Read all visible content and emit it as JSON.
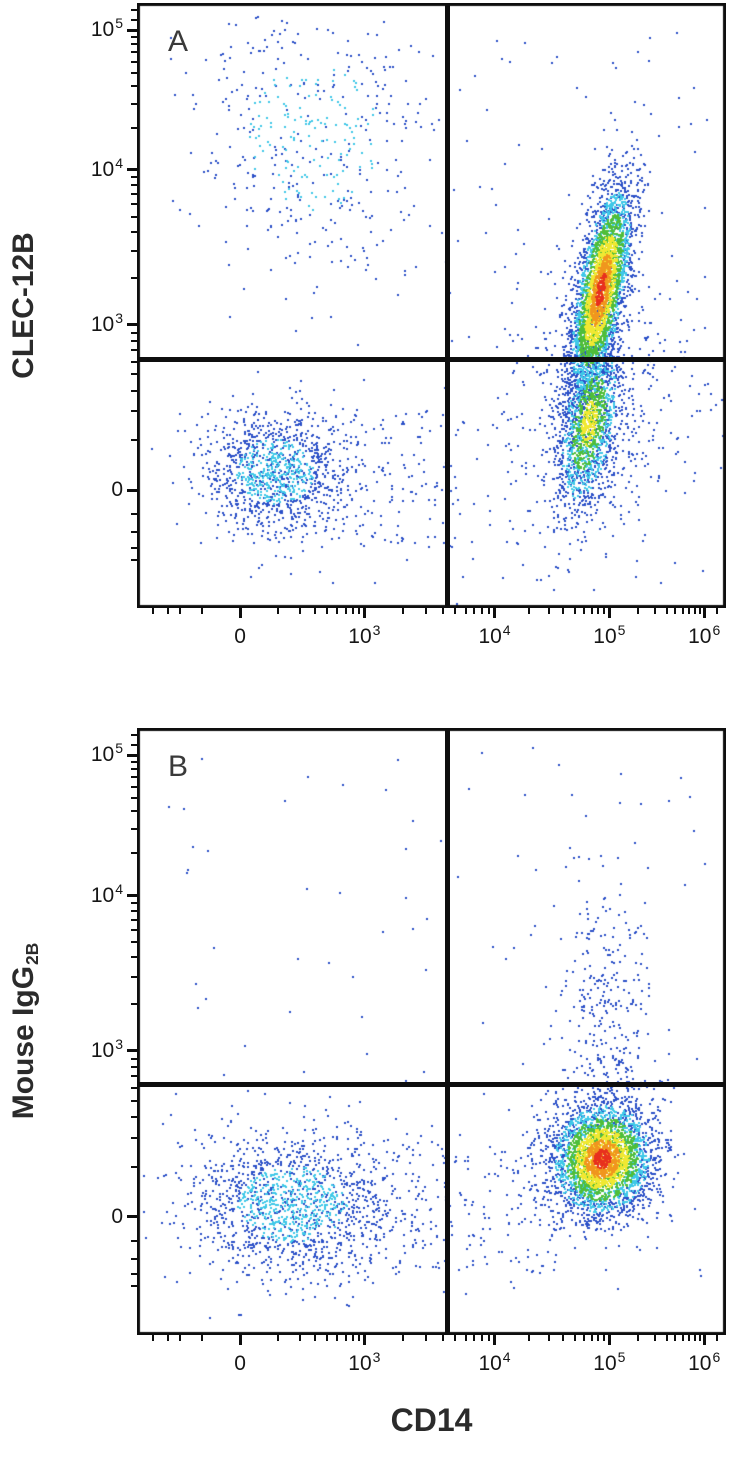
{
  "figure": {
    "x_axis_label": "CD14",
    "panels": [
      {
        "letter": "A",
        "y_label_main": "CLEC-12B",
        "y_label_sub": ""
      },
      {
        "letter": "B",
        "y_label_main": "Mouse IgG",
        "y_label_sub": "2B"
      }
    ]
  },
  "axes": {
    "x": {
      "majors": [
        {
          "frac": 0.175,
          "base": "0",
          "exp": ""
        },
        {
          "frac": 0.386,
          "base": "10",
          "exp": "3"
        },
        {
          "frac": 0.607,
          "base": "10",
          "exp": "4"
        },
        {
          "frac": 0.802,
          "base": "10",
          "exp": "5"
        },
        {
          "frac": 0.963,
          "base": "10",
          "exp": "6"
        }
      ],
      "minors": [
        0.028,
        0.052,
        0.073,
        0.11,
        0.239,
        0.276,
        0.303,
        0.323,
        0.34,
        0.354,
        0.366,
        0.377,
        0.452,
        0.491,
        0.519,
        0.54,
        0.558,
        0.573,
        0.586,
        0.597,
        0.666,
        0.7,
        0.724,
        0.743,
        0.759,
        0.772,
        0.783,
        0.793,
        0.85,
        0.879,
        0.899,
        0.914,
        0.927,
        0.938,
        0.947,
        0.956,
        0.985
      ]
    },
    "y": {
      "majors": [
        {
          "frac": 0.955,
          "base": "10",
          "exp": "5"
        },
        {
          "frac": 0.724,
          "base": "10",
          "exp": "4"
        },
        {
          "frac": 0.468,
          "base": "10",
          "exp": "3"
        },
        {
          "frac": 0.195,
          "base": "0",
          "exp": ""
        }
      ],
      "minors": [
        0.08,
        0.1,
        0.125,
        0.155,
        0.277,
        0.325,
        0.359,
        0.386,
        0.407,
        0.426,
        0.441,
        0.455,
        0.545,
        0.59,
        0.622,
        0.647,
        0.667,
        0.684,
        0.699,
        0.712,
        0.794,
        0.833,
        0.863,
        0.885,
        0.903,
        0.919,
        0.933,
        0.944,
        0.972,
        0.988
      ]
    }
  },
  "chart_data": [
    {
      "type": "scatter",
      "panel": "A",
      "title": "A",
      "xlabel": "CD14",
      "ylabel": "CLEC-12B",
      "x_scale": "biexponential (logicle)",
      "y_scale": "biexponential (logicle)",
      "x_tick_labels": [
        "0",
        "10^3",
        "10^4",
        "10^5",
        "10^6"
      ],
      "y_tick_labels": [
        "0",
        "10^3",
        "10^4",
        "10^5"
      ],
      "legend": "density dot plot: blue = low density, red = high density",
      "quadrant_gate": {
        "x_frac": 0.527,
        "y_frac": 0.41,
        "x_value": "~4x10^3",
        "y_value": "~6x10^2"
      },
      "populations": [
        {
          "name": "background-scatter",
          "shape": "uniform",
          "x0": 0.06,
          "x1": 0.97,
          "y0": 0.04,
          "y1": 0.97,
          "n": 160,
          "peak": "blue"
        },
        {
          "name": "cd14pos-sparse-halo",
          "shape": "gauss",
          "cx": 0.77,
          "cy": 0.33,
          "sx": 0.09,
          "sy": 0.13,
          "angle": -8,
          "n": 520,
          "peak": "blue",
          "approx": {
            "x": "~6x10^4",
            "y": "~2x10^2"
          }
        },
        {
          "name": "lower-bridge",
          "shape": "uniform",
          "x0": 0.3,
          "x1": 0.55,
          "y0": 0.1,
          "y1": 0.33,
          "n": 140,
          "peak": "blue"
        },
        {
          "name": "cd14neg-clec12bpos",
          "shape": "gauss",
          "cx": 0.3,
          "cy": 0.78,
          "sx": 0.105,
          "sy": 0.115,
          "angle": 0,
          "n": 430,
          "peak": "cyan",
          "approx": {
            "x": "~1x10^2",
            "y": "~2x10^4"
          }
        },
        {
          "name": "double-negative-lymphocytes",
          "shape": "gauss",
          "cx": 0.235,
          "cy": 0.225,
          "sx": 0.062,
          "sy": 0.05,
          "angle": -5,
          "n": 1150,
          "peak": "cyan",
          "approx": {
            "x": "~2x10^2",
            "y": "~1x10^2"
          }
        },
        {
          "name": "cd14pos-low-clec12b-tail",
          "shape": "gauss",
          "cx": 0.768,
          "cy": 0.305,
          "sx": 0.024,
          "sy": 0.075,
          "angle": -10,
          "n": 1600,
          "peak": "yellow",
          "approx": {
            "x": "~7x10^4",
            "y": "~3x10^2"
          }
        },
        {
          "name": "cd14pos-clec12bpos-monocytes",
          "shape": "gauss",
          "cx": 0.788,
          "cy": 0.525,
          "sx": 0.02,
          "sy": 0.088,
          "angle": -11,
          "n": 3900,
          "peak": "red",
          "approx": {
            "x": "~8x10^4",
            "y": "~2x10^3"
          }
        }
      ]
    },
    {
      "type": "scatter",
      "panel": "B",
      "title": "B",
      "xlabel": "CD14",
      "ylabel": "Mouse IgG2B",
      "x_scale": "biexponential (logicle)",
      "y_scale": "biexponential (logicle)",
      "x_tick_labels": [
        "0",
        "10^3",
        "10^4",
        "10^5",
        "10^6"
      ],
      "y_tick_labels": [
        "0",
        "10^3",
        "10^4",
        "10^5"
      ],
      "legend": "density dot plot: blue = low density, red = high density",
      "quadrant_gate": {
        "x_frac": 0.527,
        "y_frac": 0.412,
        "x_value": "~4x10^3",
        "y_value": "~6x10^2"
      },
      "populations": [
        {
          "name": "background-scatter",
          "shape": "uniform",
          "x0": 0.05,
          "x1": 0.97,
          "y0": 0.03,
          "y1": 0.97,
          "n": 130,
          "peak": "blue"
        },
        {
          "name": "lower-bridge",
          "shape": "uniform",
          "x0": 0.3,
          "x1": 0.72,
          "y0": 0.1,
          "y1": 0.33,
          "n": 260,
          "peak": "blue"
        },
        {
          "name": "cd14pos-isotype-spillover",
          "shape": "gauss",
          "cx": 0.795,
          "cy": 0.52,
          "sx": 0.04,
          "sy": 0.115,
          "angle": 0,
          "n": 320,
          "peak": "blue",
          "approx": {
            "x": "~8x10^4",
            "y": "~1x10^3"
          }
        },
        {
          "name": "cd14neg-lymphocytes",
          "shape": "gauss",
          "cx": 0.265,
          "cy": 0.215,
          "sx": 0.088,
          "sy": 0.058,
          "angle": 0,
          "n": 1400,
          "peak": "cyan",
          "approx": {
            "x": "~2x10^2",
            "y": "~1x10^2"
          }
        },
        {
          "name": "cd14pos-isotype-negative-monocytes",
          "shape": "gauss",
          "cx": 0.79,
          "cy": 0.29,
          "sx": 0.042,
          "sy": 0.047,
          "angle": -15,
          "n": 3600,
          "peak": "red",
          "approx": {
            "x": "~8x10^4",
            "y": "~2x10^2"
          }
        }
      ]
    }
  ],
  "palette": {
    "density_ramp": [
      "#2b50c8",
      "#3fc8e8",
      "#4fbe3a",
      "#f0e832",
      "#f0961e",
      "#e8301e"
    ],
    "axis_color": "#0e0e0e",
    "gate_color": "#0e0e0e"
  }
}
